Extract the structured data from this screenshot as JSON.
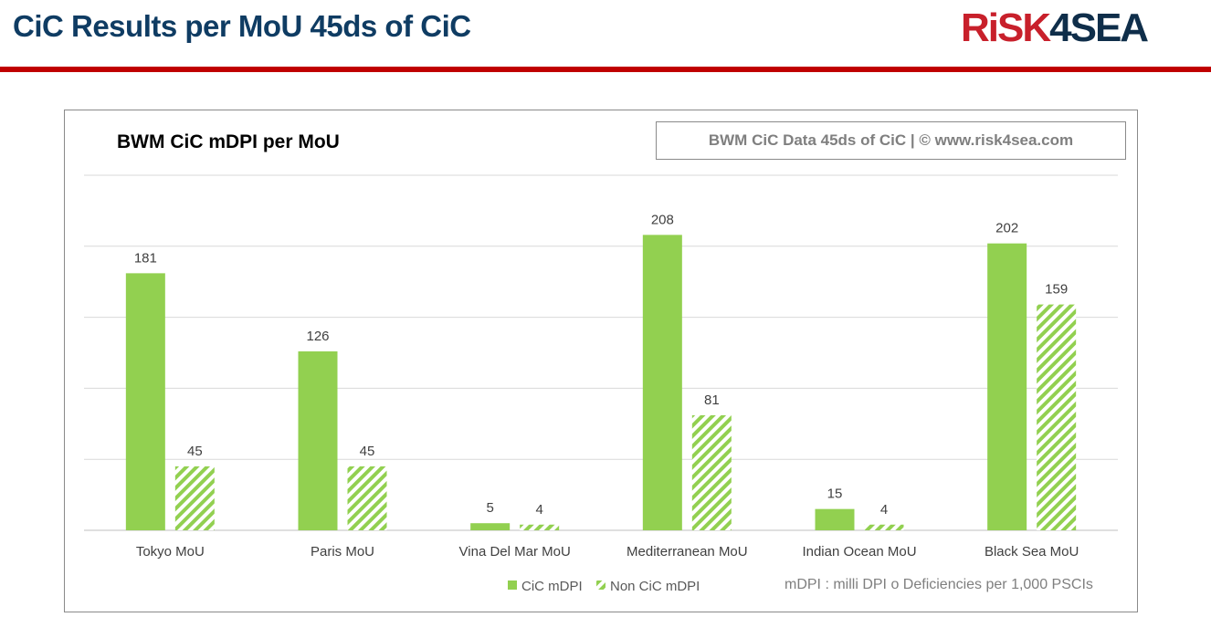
{
  "header": {
    "title": "CiC Results per MoU 45ds of CiC",
    "logo_red": "RiSK",
    "logo_dark": "4SEA"
  },
  "colors": {
    "cic": "#92d050",
    "noncic": "#92d050",
    "accent": "#c00000",
    "title": "#0f3c63"
  },
  "chart_data": {
    "type": "bar",
    "title": "BWM CiC mDPI per MoU",
    "source": "BWM CiC Data 45ds of CiC | © www.risk4sea.com",
    "categories": [
      "Tokyo MoU",
      "Paris MoU",
      "Vina Del Mar MoU",
      "Mediterranean MoU",
      "Indian Ocean MoU",
      "Black Sea MoU"
    ],
    "series": [
      {
        "name": "CiC mDPI",
        "values": [
          181,
          126,
          5,
          208,
          15,
          202
        ],
        "pattern": "solid"
      },
      {
        "name": "Non CiC mDPI",
        "values": [
          45,
          45,
          4,
          81,
          4,
          159
        ],
        "pattern": "hatched"
      }
    ],
    "ylim": [
      0,
      250
    ],
    "grid_step": 50,
    "grid": true,
    "legend": "bottom",
    "note": "mDPI : milli DPI o Deficiencies per 1,000 PSCIs"
  }
}
